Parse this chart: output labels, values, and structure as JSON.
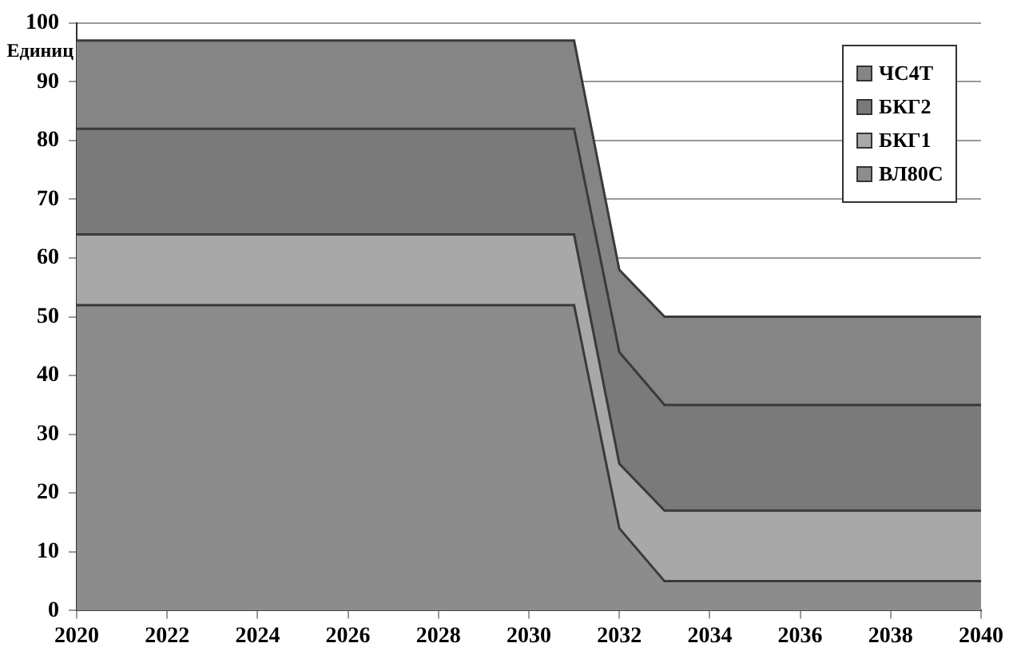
{
  "chart_data": {
    "type": "area",
    "stacked": true,
    "ylabel": "Единиц",
    "x": [
      2020,
      2031,
      2032,
      2033,
      2040
    ],
    "series": [
      {
        "name": "ВЛ80С",
        "color": "#8c8c8c",
        "values": [
          52,
          52,
          14,
          5,
          5
        ]
      },
      {
        "name": "БКГ1",
        "color": "#a8a8a8",
        "values": [
          12,
          12,
          11,
          12,
          12
        ]
      },
      {
        "name": "БКГ2",
        "color": "#7a7a7a",
        "values": [
          18,
          18,
          19,
          18,
          18
        ]
      },
      {
        "name": "ЧС4Т",
        "color": "#858585",
        "values": [
          15,
          15,
          14,
          15,
          15
        ]
      }
    ],
    "xlim": [
      2020,
      2040
    ],
    "xticks": [
      2020,
      2022,
      2024,
      2026,
      2028,
      2030,
      2032,
      2034,
      2036,
      2038,
      2040
    ],
    "ylim": [
      0,
      100
    ],
    "yticks": [
      0,
      10,
      20,
      30,
      40,
      50,
      60,
      70,
      80,
      90,
      100
    ],
    "grid": "y",
    "legend": "top right"
  }
}
